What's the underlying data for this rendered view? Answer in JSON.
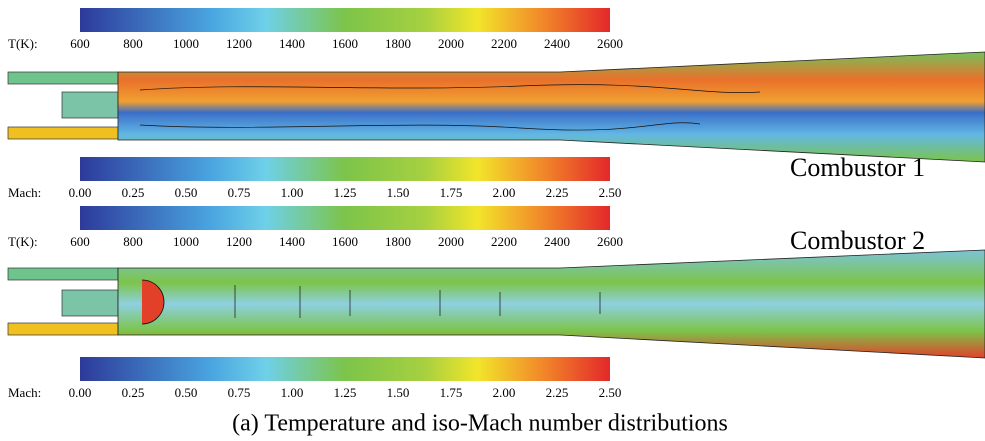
{
  "colorbars": [
    {
      "label": "T(K):",
      "ticks": [
        "600",
        "800",
        "1000",
        "1200",
        "1400",
        "1600",
        "1800",
        "2000",
        "2200",
        "2400",
        "2600"
      ]
    },
    {
      "label": "Mach:",
      "ticks": [
        "0.00",
        "0.25",
        "0.50",
        "0.75",
        "1.00",
        "1.25",
        "1.50",
        "1.75",
        "2.00",
        "2.25",
        "2.50"
      ]
    },
    {
      "label": "T(K):",
      "ticks": [
        "600",
        "800",
        "1000",
        "1200",
        "1400",
        "1600",
        "1800",
        "2000",
        "2200",
        "2400",
        "2600"
      ]
    },
    {
      "label": "Mach:",
      "ticks": [
        "0.00",
        "0.25",
        "0.50",
        "0.75",
        "1.00",
        "1.25",
        "1.50",
        "1.75",
        "2.00",
        "2.25",
        "2.50"
      ]
    }
  ],
  "panels": [
    {
      "label": "Combustor 1"
    },
    {
      "label": "Combustor 2"
    }
  ],
  "caption": "(a)  Temperature and iso-Mach number distributions"
}
